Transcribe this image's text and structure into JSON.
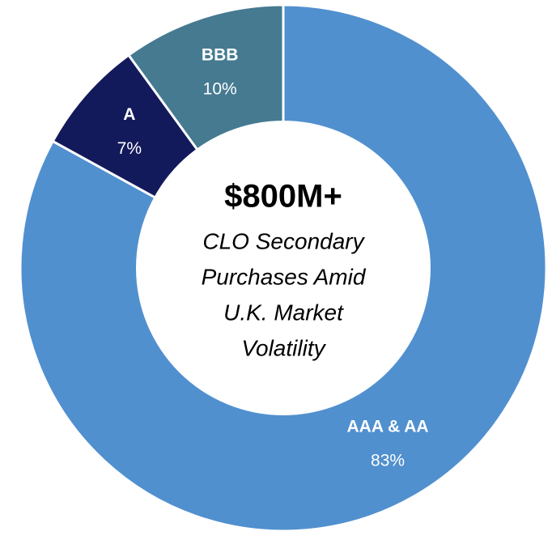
{
  "chart_data": {
    "type": "donut",
    "title": "$800M+",
    "subtitle_lines": [
      "CLO Secondary",
      "Purchases Amid",
      "U.K. Market",
      "Volatility"
    ],
    "categories": [
      "AAA & AA",
      "A",
      "BBB"
    ],
    "values": [
      83,
      7,
      10
    ],
    "value_labels": [
      "83%",
      "7%",
      "10%"
    ],
    "colors": [
      "#5190cf",
      "#131a5b",
      "#457a91"
    ]
  }
}
